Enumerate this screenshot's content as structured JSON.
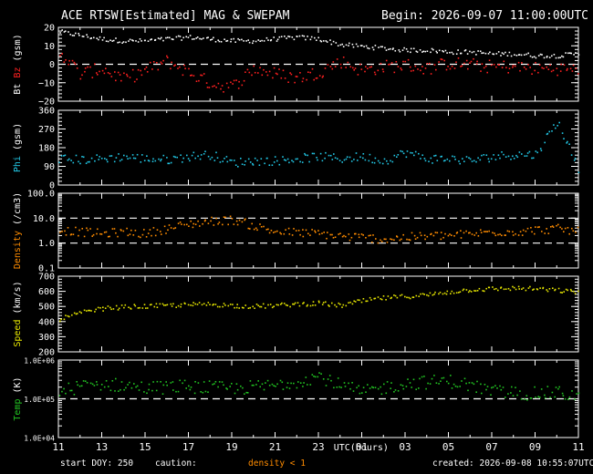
{
  "header": {
    "title": "ACE RTSW[Estimated] MAG & SWEPAM",
    "begin": "Begin: 2026-09-07 11:00:00UTC"
  },
  "footer": {
    "start_doy": "start DOY: 250",
    "caution": "caution:",
    "density_note": "density < 1",
    "created": "created: 2026-09-08 10:55:07UTC"
  },
  "colors": {
    "bt": "#ffffff",
    "bz": "#ff2020",
    "phi": "#22c8e6",
    "density": "#ff8c00",
    "speed": "#e6e600",
    "temp": "#22c422",
    "frame": "#ffffff",
    "background": "#000000"
  },
  "chart_data": {
    "type": "scatter",
    "xlabel": "UTC(hours)",
    "x_ticks": [
      "11",
      "13",
      "15",
      "17",
      "19",
      "21",
      "23",
      "01",
      "03",
      "05",
      "07",
      "09",
      "11"
    ],
    "x_range_hours": [
      0,
      24
    ],
    "panels": [
      {
        "name": "mag",
        "ylabel_parts": [
          {
            "text": "Bt",
            "color": "#ffffff"
          },
          {
            "text": "Bz",
            "color": "#ff2020"
          },
          {
            "text": "(gsm)",
            "color": "#ffffff"
          }
        ],
        "yscale": "linear",
        "ylim": [
          -20,
          20
        ],
        "y_ticks": [
          "20",
          "10",
          "0",
          "−10",
          "−20"
        ],
        "y_tick_values": [
          20,
          10,
          0,
          -10,
          -20
        ],
        "ref_lines": [
          0
        ],
        "series": [
          {
            "name": "Bt",
            "color": "#ffffff",
            "x": [
              0,
              1,
              2,
              3,
              4,
              5,
              6,
              7,
              8,
              9,
              10,
              11,
              12,
              13,
              14,
              15,
              16,
              17,
              18,
              19,
              20,
              21,
              22,
              23,
              24
            ],
            "values": [
              18,
              16,
              14,
              13,
              13,
              14,
              15,
              14,
              13,
              13,
              14,
              15,
              14,
              11,
              10,
              9,
              8,
              8,
              7,
              7,
              6,
              6,
              5,
              5,
              6
            ]
          },
          {
            "name": "Bz",
            "color": "#ff2020",
            "x": [
              0,
              1,
              2,
              3,
              4,
              5,
              6,
              7,
              8,
              9,
              10,
              11,
              12,
              13,
              14,
              15,
              16,
              17,
              18,
              19,
              20,
              21,
              22,
              23,
              24
            ],
            "values": [
              8,
              -5,
              -2,
              -8,
              -3,
              2,
              -4,
              -10,
              -12,
              -2,
              -5,
              -7,
              -4,
              2,
              -3,
              -1,
              0,
              -2,
              1,
              0,
              -1,
              -1,
              -2,
              -2,
              -3
            ]
          }
        ]
      },
      {
        "name": "phi",
        "ylabel_parts": [
          {
            "text": "Phi",
            "color": "#22c8e6"
          },
          {
            "text": "(gsm)",
            "color": "#ffffff"
          }
        ],
        "yscale": "linear",
        "ylim": [
          0,
          360
        ],
        "y_ticks": [
          "360",
          "270",
          "180",
          "90",
          "0"
        ],
        "y_tick_values": [
          360,
          270,
          180,
          90,
          0
        ],
        "ref_lines": [],
        "series": [
          {
            "name": "Phi",
            "color": "#22c8e6",
            "x": [
              0,
              1,
              2,
              3,
              4,
              5,
              6,
              7,
              8,
              9,
              10,
              11,
              12,
              13,
              14,
              15,
              16,
              17,
              18,
              19,
              20,
              21,
              22,
              23,
              24
            ],
            "values": [
              130,
              125,
              130,
              140,
              130,
              125,
              140,
              150,
              110,
              120,
              120,
              130,
              140,
              130,
              140,
              120,
              160,
              130,
              130,
              120,
              140,
              150,
              150,
              310,
              80
            ]
          }
        ]
      },
      {
        "name": "density",
        "ylabel_parts": [
          {
            "text": "Density",
            "color": "#ff8c00"
          },
          {
            "text": "(/cm3)",
            "color": "#ffffff"
          }
        ],
        "yscale": "log",
        "ylim": [
          0.1,
          100
        ],
        "y_ticks": [
          "100.0",
          "10.0",
          "1.0",
          "0.1"
        ],
        "y_tick_values": [
          100,
          10,
          1,
          0.1
        ],
        "ref_lines": [
          10,
          1
        ],
        "series": [
          {
            "name": "Density",
            "color": "#ff8c00",
            "x": [
              0,
              1,
              2,
              3,
              4,
              5,
              6,
              7,
              8,
              9,
              10,
              11,
              12,
              13,
              14,
              15,
              16,
              17,
              18,
              19,
              20,
              21,
              22,
              23,
              24
            ],
            "values": [
              3.5,
              3,
              2.5,
              3,
              2.5,
              4,
              6,
              8,
              9,
              5,
              3,
              2.8,
              2.5,
              2,
              1.8,
              1.5,
              1.8,
              2,
              2.2,
              2.4,
              3,
              3,
              3.5,
              4,
              3
            ]
          }
        ]
      },
      {
        "name": "speed",
        "ylabel_parts": [
          {
            "text": "Speed",
            "color": "#e6e600"
          },
          {
            "text": "(km/s)",
            "color": "#ffffff"
          }
        ],
        "yscale": "linear",
        "ylim": [
          200,
          700
        ],
        "y_ticks": [
          "700",
          "600",
          "500",
          "400",
          "300",
          "200"
        ],
        "y_tick_values": [
          700,
          600,
          500,
          400,
          300,
          200
        ],
        "ref_lines": [],
        "series": [
          {
            "name": "Speed",
            "color": "#e6e600",
            "x": [
              0,
              1,
              2,
              3,
              4,
              5,
              6,
              7,
              8,
              9,
              10,
              11,
              12,
              13,
              14,
              15,
              16,
              17,
              18,
              19,
              20,
              21,
              22,
              23,
              24
            ],
            "values": [
              420,
              460,
              490,
              500,
              505,
              510,
              515,
              520,
              510,
              505,
              510,
              520,
              525,
              510,
              540,
              560,
              570,
              580,
              600,
              615,
              620,
              625,
              620,
              610,
              600
            ]
          }
        ]
      },
      {
        "name": "temp",
        "ylabel_parts": [
          {
            "text": "Temp",
            "color": "#22c422"
          },
          {
            "text": "(K)",
            "color": "#ffffff"
          }
        ],
        "yscale": "log",
        "ylim": [
          10000,
          1000000
        ],
        "y_ticks": [
          "1.0E+06",
          "1.0E+05",
          "1.0E+04"
        ],
        "y_tick_values": [
          1000000,
          100000,
          10000
        ],
        "ref_lines": [
          100000
        ],
        "series": [
          {
            "name": "Temp",
            "color": "#22c422",
            "x": [
              0,
              1,
              2,
              3,
              4,
              5,
              6,
              7,
              8,
              9,
              10,
              11,
              12,
              13,
              14,
              15,
              16,
              17,
              18,
              19,
              20,
              21,
              22,
              23,
              24
            ],
            "values": [
              150000,
              220000,
              250000,
              230000,
              200000,
              210000,
              220000,
              200000,
              190000,
              210000,
              230000,
              300000,
              400000,
              220000,
              150000,
              200000,
              260000,
              280000,
              300000,
              230000,
              160000,
              150000,
              140000,
              150000,
              120000
            ]
          }
        ]
      }
    ]
  }
}
